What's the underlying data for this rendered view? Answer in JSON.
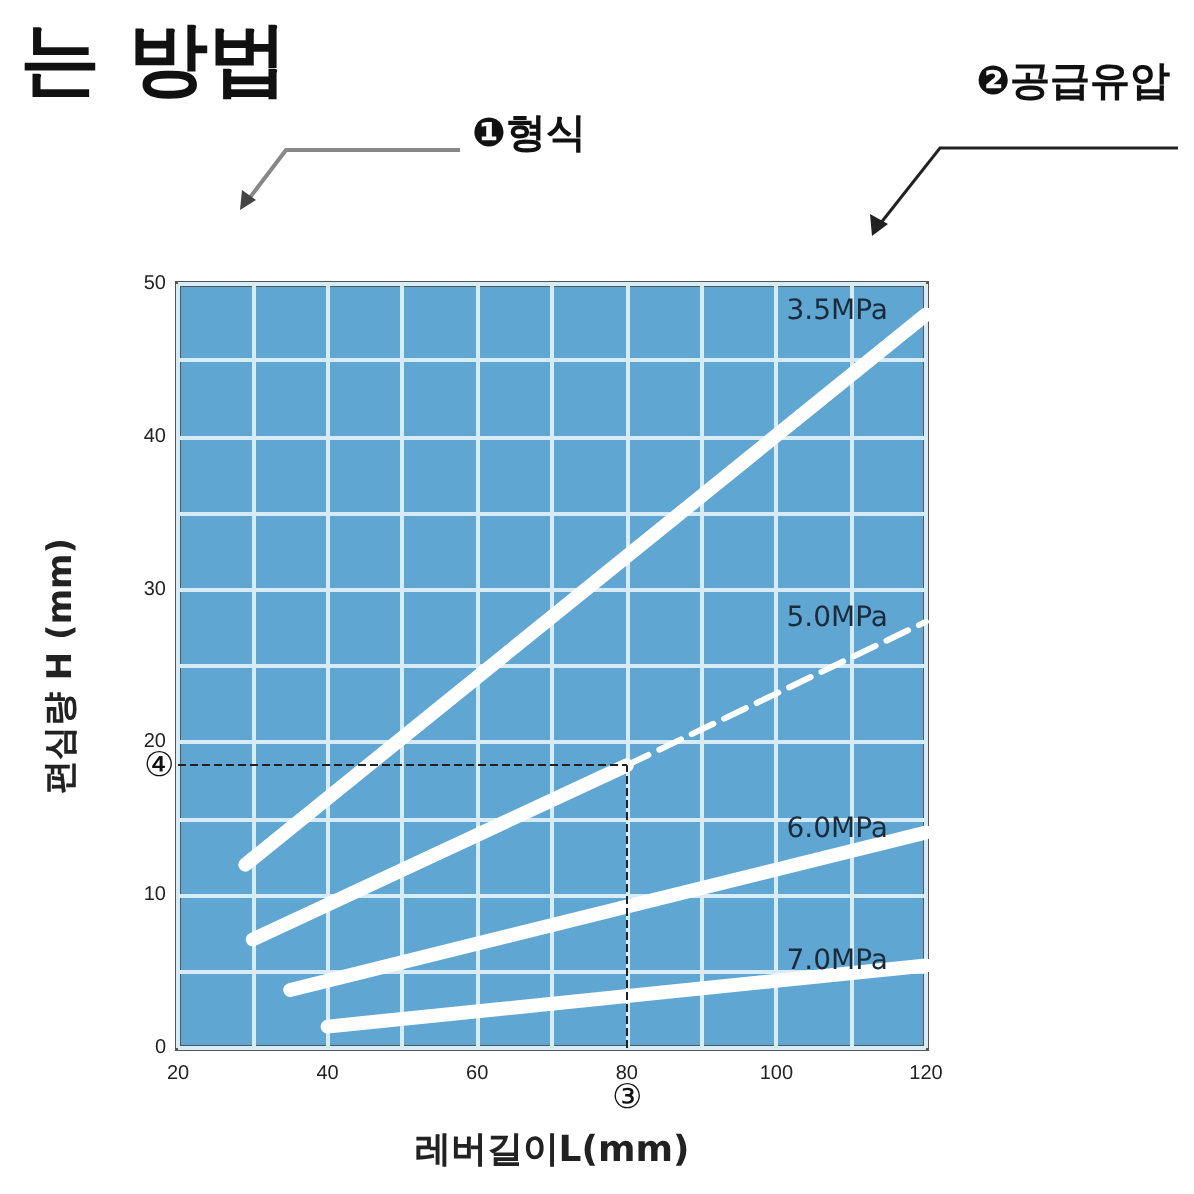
{
  "chart_data": {
    "type": "line",
    "xlabel": "레버길이L(mm)",
    "ylabel": "편심량 H (mm)",
    "annotations": [
      "는 방법",
      "❶형식",
      "❷공급유압"
    ],
    "series": [
      {
        "name": "3.5MPa",
        "color": "#ffffff",
        "x": [
          29,
          120
        ],
        "values": [
          12,
          48
        ]
      },
      {
        "color": "#ffffff",
        "x": [
          30,
          80
        ],
        "values": [
          7.1,
          18.5
        ]
      },
      {
        "name": "5.0MPa",
        "color": "#ffffff",
        "x": [
          80,
          120
        ],
        "values": [
          18.5,
          27.9
        ],
        "line_style": "dashed"
      },
      {
        "name": "6.0MPa",
        "color": "#ffffff",
        "x": [
          35,
          120
        ],
        "values": [
          3.8,
          14.1
        ]
      },
      {
        "name": "7.0MPa",
        "color": "#ffffff",
        "x": [
          40,
          120
        ],
        "values": [
          1.4,
          5.4
        ]
      }
    ],
    "ref_lines": [
      {
        "axis": "y",
        "value": 18.5,
        "label": "④",
        "color": "#222222",
        "line_style": "dashed"
      },
      {
        "axis": "x",
        "value": 80,
        "label": "③",
        "color": "#222222",
        "line_style": "dashed"
      }
    ],
    "xlim": [
      20,
      120
    ],
    "xticks": [
      20,
      40,
      60,
      80,
      100,
      120
    ],
    "ylim": [
      0,
      50
    ],
    "yticks": [
      0,
      10,
      20,
      30,
      40,
      50
    ],
    "grid": true,
    "legend": false,
    "marker": "none",
    "line_style": "solid"
  }
}
